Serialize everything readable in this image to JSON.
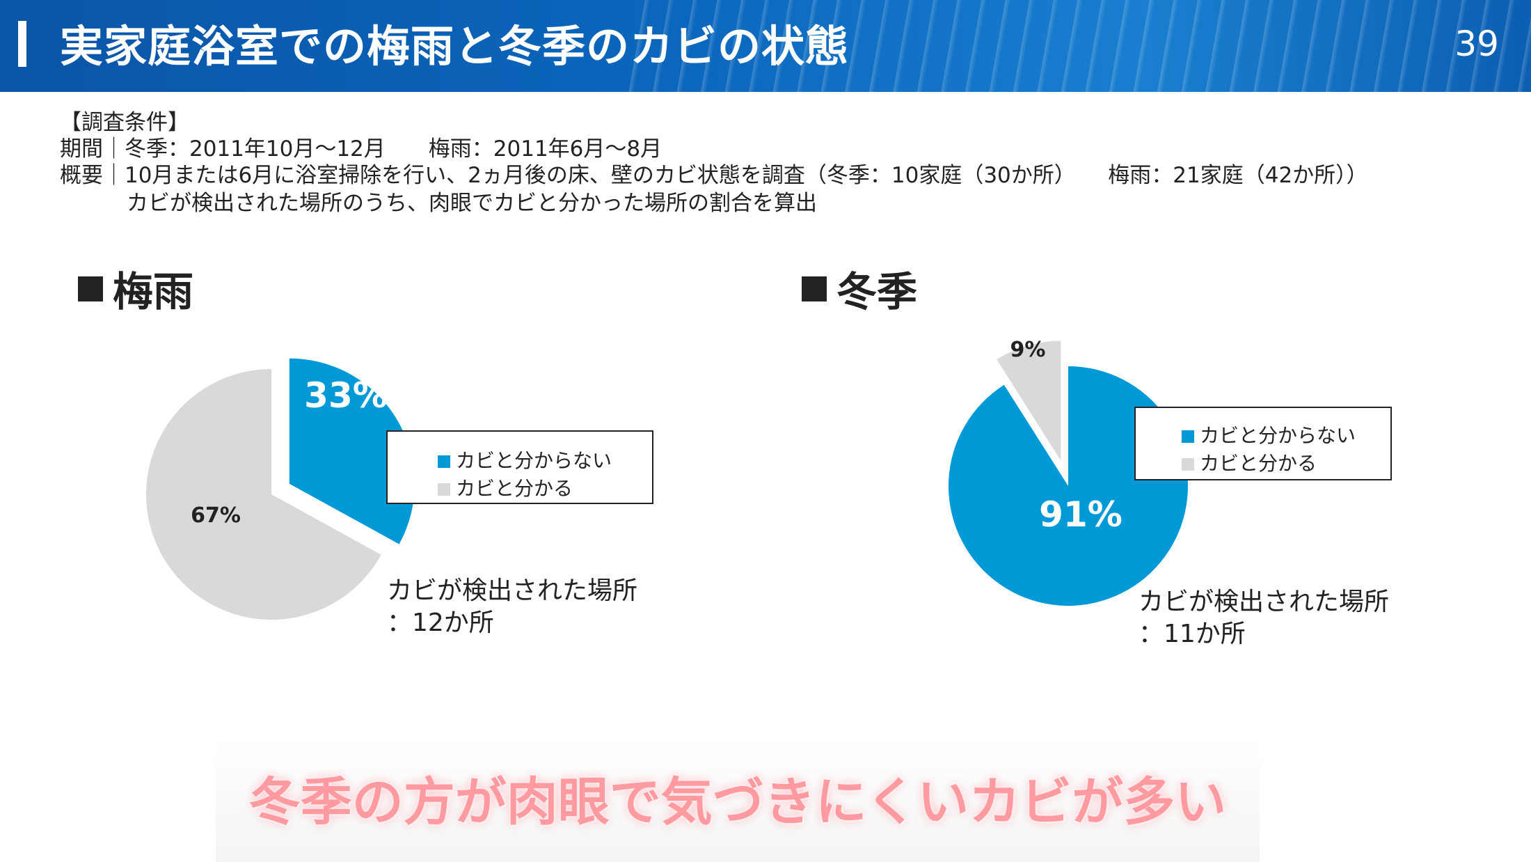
{
  "header": {
    "title": "実家庭浴室での梅雨と冬季のカビの状態",
    "page_number": "39"
  },
  "conditions": {
    "heading": "【調査条件】",
    "period_label": "期間",
    "period_text": "冬季：2011年10月～12月　　梅雨：2011年6月～8月",
    "summary_label": "概要",
    "summary_line1": "10月または6月に浴室掃除を行い、2ヵ月後の床、壁のカビ状態を調査（冬季：10家庭（30か所）　　梅雨：21家庭（42か所））",
    "summary_line2": "カビが検出された場所のうち、肉眼でカビと分かった場所の割合を算出"
  },
  "colors": {
    "blue": "#0099d8",
    "gray": "#d9d9d9",
    "header_blue": "#0b63b8",
    "conclusion_pink": "#ff9aa0"
  },
  "chart_data": [
    {
      "type": "pie",
      "title": "梅雨",
      "categories": [
        "カビと分からない",
        "カビと分かる"
      ],
      "values": [
        33,
        67
      ],
      "data_labels": [
        "33%",
        "67%"
      ],
      "exploded": "カビと分からない",
      "legend": [
        "カビと分からない",
        "カビと分かる"
      ],
      "legend_position": "right",
      "note_line1": "カビが検出された場所",
      "note_line2": "：12か所"
    },
    {
      "type": "pie",
      "title": "冬季",
      "categories": [
        "カビと分からない",
        "カビと分かる"
      ],
      "values": [
        91,
        9
      ],
      "data_labels": [
        "91%",
        "9%"
      ],
      "exploded": "カビと分かる",
      "legend": [
        "カビと分からない",
        "カビと分かる"
      ],
      "legend_position": "right",
      "note_line1": "カビが検出された場所",
      "note_line2": "：11か所"
    }
  ],
  "conclusion": "冬季の方が肉眼で気づきにくいカビが多い"
}
